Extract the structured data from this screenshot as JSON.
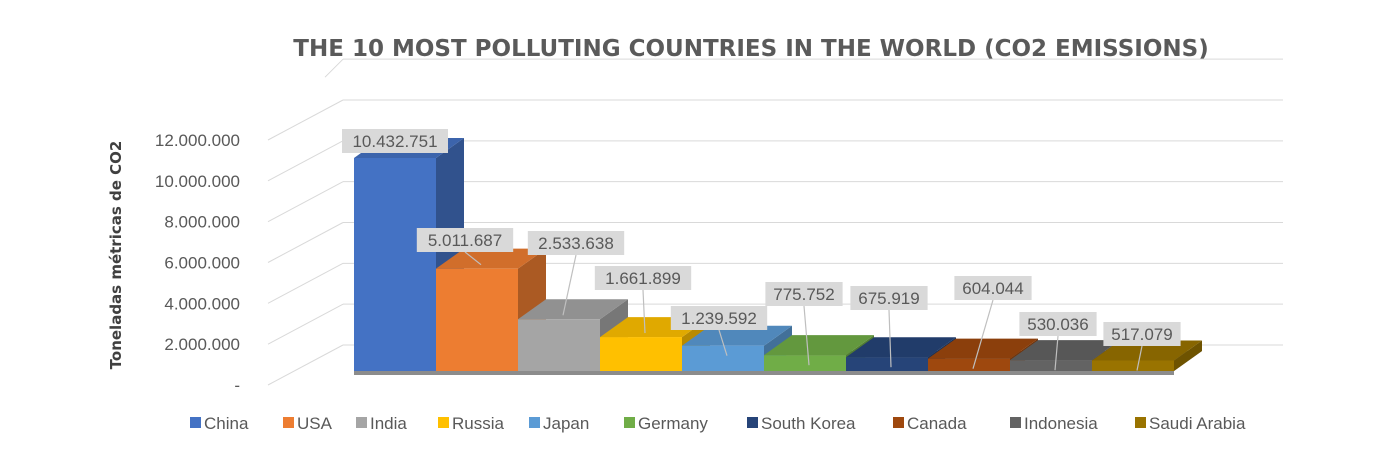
{
  "chart_data": {
    "type": "bar",
    "title": "THE 10 MOST POLLUTING COUNTRIES IN THE WORLD (CO2 EMISSIONS)",
    "xlabel": "",
    "ylabel": "Toneladas métricas de CO2",
    "ylim": [
      0,
      12000000
    ],
    "yticks": [
      0,
      2000000,
      4000000,
      6000000,
      8000000,
      10000000,
      12000000
    ],
    "ytick_labels": [
      "-",
      "2.000.000",
      "4.000.000",
      "6.000.000",
      "8.000.000",
      "10.000.000",
      "12.000.000"
    ],
    "grid": true,
    "legend_position": "bottom",
    "categories": [
      "China",
      "USA",
      "India",
      "Russia",
      "Japan",
      "Germany",
      "South Korea",
      "Canada",
      "Indonesia",
      "Saudi Arabia"
    ],
    "values": [
      10432751,
      5011687,
      2533638,
      1661899,
      1239592,
      775752,
      675919,
      604044,
      530036,
      517079
    ],
    "data_labels": [
      "10.432.751",
      "5.011.687",
      "2.533.638",
      "1.661.899",
      "1.239.592",
      "775.752",
      "675.919",
      "604.044",
      "530.036",
      "517.079"
    ],
    "colors": [
      "#4472c4",
      "#ed7d31",
      "#a5a5a5",
      "#ffc000",
      "#5b9bd5",
      "#70ad47",
      "#264478",
      "#9e480e",
      "#636363",
      "#997300"
    ]
  }
}
